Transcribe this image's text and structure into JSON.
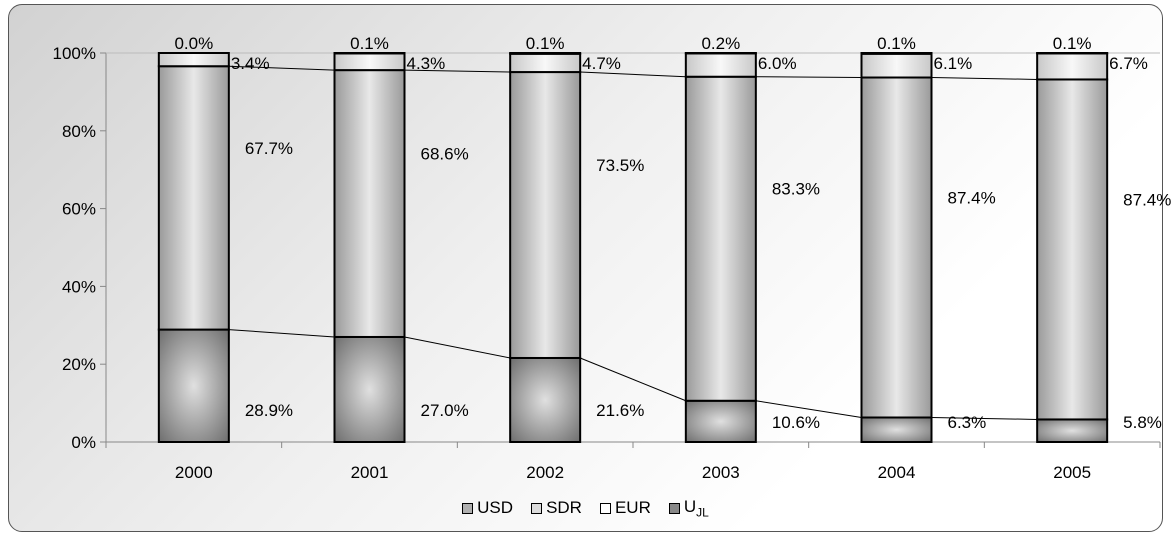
{
  "chart_data": {
    "type": "bar",
    "stacked": true,
    "categories": [
      "2000",
      "2001",
      "2002",
      "2003",
      "2004",
      "2005"
    ],
    "series": [
      {
        "name": "U J L",
        "values": [
          28.9,
          27.0,
          21.6,
          10.6,
          6.3,
          5.8
        ],
        "labels": [
          "28.9%",
          "27.0%",
          "21.6%",
          "10.6%",
          "6.3%",
          "5.8%"
        ],
        "color": "#888888"
      },
      {
        "name": "USD",
        "values": [
          67.7,
          68.6,
          73.5,
          83.3,
          87.4,
          87.4
        ],
        "labels": [
          "67.7%",
          "68.6%",
          "73.5%",
          "83.3%",
          "87.4%",
          "87.4%"
        ],
        "color": "#b0b0b0"
      },
      {
        "name": "SDR",
        "values": [
          3.4,
          4.3,
          4.7,
          6.0,
          6.1,
          6.7
        ],
        "labels": [
          "3.4%",
          "4.3%",
          "4.7%",
          "6.0%",
          "6.1%",
          "6.7%"
        ],
        "color": "#dcdcdc"
      },
      {
        "name": "EUR",
        "values": [
          0.0,
          0.1,
          0.1,
          0.2,
          0.1,
          0.1
        ],
        "labels": [
          "0.0%",
          "0.1%",
          "0.1%",
          "0.2%",
          "0.1%",
          "0.1%"
        ],
        "color": "#ffffff"
      }
    ],
    "y_ticks": [
      "0%",
      "20%",
      "40%",
      "60%",
      "80%",
      "100%"
    ],
    "ylim": [
      0,
      100
    ],
    "grid": false,
    "legend_position": "bottom",
    "legend": [
      {
        "label": "USD",
        "color": "#b0b0b0"
      },
      {
        "label": "SDR",
        "color": "#dcdcdc"
      },
      {
        "label": "EUR",
        "color": "#ffffff"
      },
      {
        "label": "U",
        "sub": "JL",
        "color": "#888888"
      }
    ]
  }
}
